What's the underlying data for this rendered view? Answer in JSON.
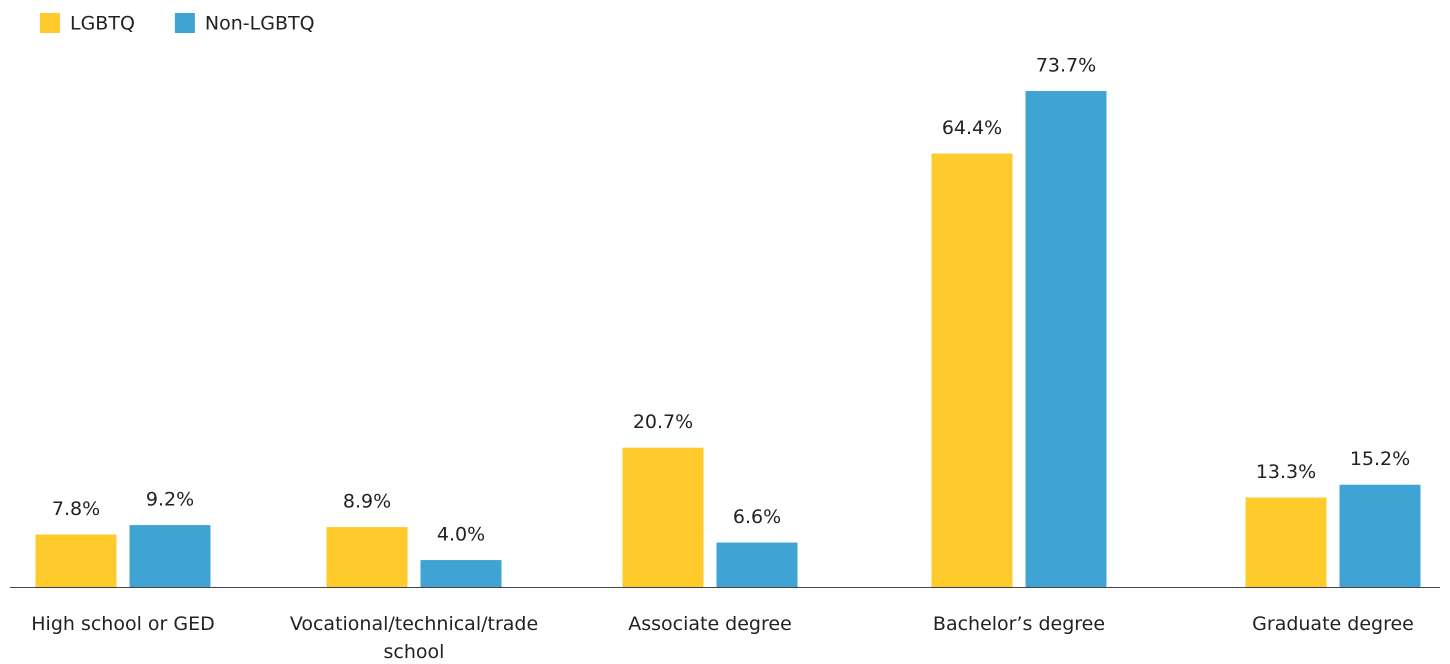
{
  "chart_data": {
    "type": "bar",
    "categories": [
      "High school or GED",
      "Vocational/technical/trade school",
      "Associate degree",
      "Bachelor’s degree",
      "Graduate degree"
    ],
    "series": [
      {
        "name": "LGBTQ",
        "color": "#ffca2b",
        "values": [
          7.8,
          8.9,
          20.7,
          64.4,
          13.3
        ],
        "value_labels": [
          "7.8%",
          "8.9%",
          "20.7%",
          "64.4%",
          "13.3%"
        ]
      },
      {
        "name": "Non-LGBTQ",
        "color": "#3fa4d3",
        "values": [
          9.2,
          4.0,
          6.6,
          73.7,
          15.2
        ],
        "value_labels": [
          "9.2%",
          "4.0%",
          "6.6%",
          "73.7%",
          "15.2%"
        ]
      }
    ],
    "legend": "top-left"
  }
}
